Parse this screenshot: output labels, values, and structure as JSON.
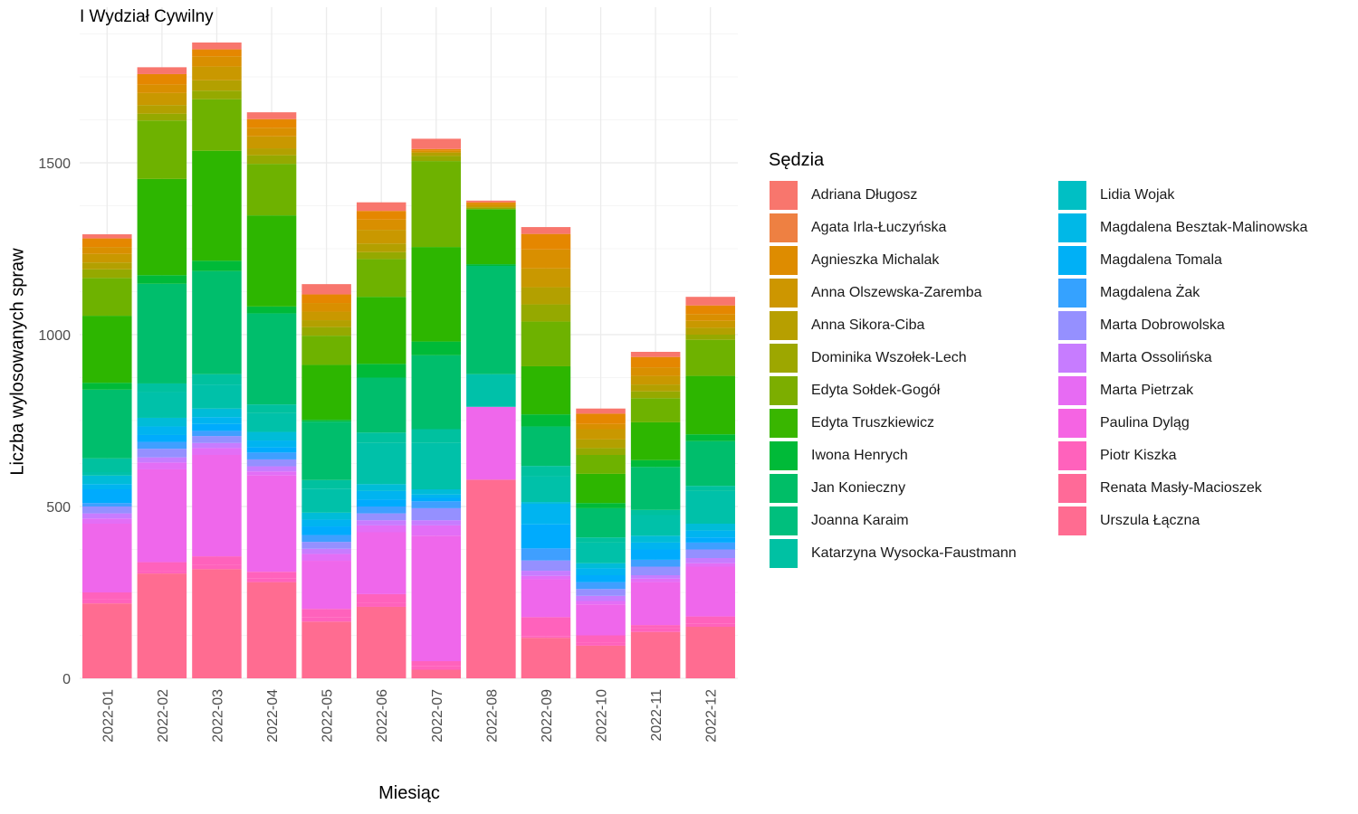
{
  "chart_data": {
    "type": "bar",
    "stacked": true,
    "title": "I Wydział Cywilny",
    "xlabel": "Miesiąc",
    "ylabel": "Liczba wylosowanych spraw",
    "ylim": [
      0,
      1880
    ],
    "yticks": [
      0,
      500,
      1000,
      1500
    ],
    "grid": true,
    "legend_position": "right",
    "legend_title": "Sędzia",
    "categories": [
      "2022-01",
      "2022-02",
      "2022-03",
      "2022-04",
      "2022-05",
      "2022-06",
      "2022-07",
      "2022-08",
      "2022-09",
      "2022-10",
      "2022-11",
      "2022-12"
    ],
    "series": [
      {
        "name": "Urszula Łączna",
        "color": "#FF6C91",
        "values": [
          218,
          305,
          318,
          280,
          165,
          208,
          25,
          578,
          118,
          95,
          135,
          150
        ]
      },
      {
        "name": "Renata Masły-Macioszek",
        "color": "#FF62BC",
        "values": [
          12,
          8,
          12,
          10,
          12,
          12,
          10,
          0,
          5,
          10,
          10,
          10
        ]
      },
      {
        "name": "Piotr Kiszka",
        "color": "#FF62BC",
        "values": [
          20,
          25,
          25,
          20,
          25,
          25,
          15,
          0,
          55,
          20,
          10,
          20
        ]
      },
      {
        "name": "Paulina Dyląg",
        "color": "#EF67EB",
        "values": [
          200,
          270,
          295,
          280,
          140,
          180,
          365,
          212,
          110,
          90,
          125,
          145
        ]
      },
      {
        "name": "Marta Pietrzak",
        "color": "#E36EF6",
        "values": [
          15,
          20,
          20,
          12,
          20,
          20,
          30,
          0,
          10,
          10,
          10,
          10
        ]
      },
      {
        "name": "Marta Ossolińska",
        "color": "#C77CFF",
        "values": [
          15,
          15,
          15,
          15,
          15,
          15,
          15,
          0,
          15,
          15,
          10,
          15
        ]
      },
      {
        "name": "Marta Dobrowolska",
        "color": "#9590FF",
        "values": [
          20,
          25,
          20,
          20,
          20,
          20,
          35,
          0,
          30,
          20,
          25,
          25
        ]
      },
      {
        "name": "Magdalena Żak",
        "color": "#3F9FFF",
        "values": [
          10,
          20,
          15,
          20,
          20,
          20,
          20,
          0,
          35,
          20,
          20,
          20
        ]
      },
      {
        "name": "Magdalena Tomala",
        "color": "#00ABFD",
        "values": [
          40,
          20,
          20,
          15,
          25,
          20,
          10,
          0,
          70,
          20,
          30,
          15
        ]
      },
      {
        "name": "Magdalena Besztak-Malinowska",
        "color": "#00B4F0",
        "values": [
          15,
          25,
          20,
          20,
          20,
          25,
          10,
          0,
          60,
          20,
          20,
          20
        ]
      },
      {
        "name": "Lidia Wojak",
        "color": "#00BCD8",
        "values": [
          25,
          25,
          25,
          25,
          20,
          20,
          15,
          0,
          5,
          15,
          20,
          20
        ]
      },
      {
        "name": "Katarzyna Wysocka-Faustmann",
        "color": "#00C1A9",
        "values": [
          10,
          75,
          70,
          55,
          70,
          120,
          135,
          95,
          75,
          60,
          60,
          95
        ]
      },
      {
        "name": "Joanna Karaim",
        "color": "#00C19F",
        "values": [
          40,
          25,
          30,
          25,
          25,
          30,
          40,
          0,
          30,
          15,
          15,
          15
        ]
      },
      {
        "name": "Jan Konieczny",
        "color": "#00BE6C",
        "values": [
          200,
          290,
          300,
          265,
          170,
          160,
          215,
          315,
          115,
          85,
          125,
          130
        ]
      },
      {
        "name": "Iwona Henrych",
        "color": "#00BA38",
        "values": [
          20,
          25,
          30,
          20,
          5,
          40,
          40,
          5,
          35,
          15,
          20,
          20
        ]
      },
      {
        "name": "Edyta Truszkiewicz",
        "color": "#2DB600",
        "values": [
          195,
          280,
          320,
          265,
          160,
          195,
          275,
          160,
          140,
          85,
          110,
          170
        ]
      },
      {
        "name": "Edyta Sołdek-Gogół",
        "color": "#6EB200",
        "values": [
          110,
          170,
          150,
          150,
          85,
          110,
          250,
          0,
          130,
          55,
          70,
          105
        ]
      },
      {
        "name": "Dominika Wszołek-Lech",
        "color": "#95A900",
        "values": [
          25,
          20,
          25,
          25,
          25,
          20,
          15,
          5,
          50,
          20,
          20,
          15
        ]
      },
      {
        "name": "Anna Sikora-Ciba",
        "color": "#B3A000",
        "values": [
          20,
          25,
          30,
          20,
          20,
          25,
          10,
          0,
          50,
          25,
          20,
          20
        ]
      },
      {
        "name": "Anna Olszewska-Zaremba",
        "color": "#C99800",
        "values": [
          25,
          35,
          40,
          35,
          25,
          40,
          0,
          5,
          55,
          30,
          25,
          20
        ]
      },
      {
        "name": "Agnieszka Michalak",
        "color": "#D98F00",
        "values": [
          20,
          25,
          30,
          25,
          25,
          30,
          5,
          5,
          55,
          15,
          25,
          20
        ]
      },
      {
        "name": "Agata Irla-Łuczyńska",
        "color": "#E58700",
        "values": [
          25,
          30,
          20,
          25,
          25,
          25,
          5,
          5,
          45,
          30,
          30,
          25
        ]
      },
      {
        "name": "Adriana Długosz",
        "color": "#F8766D",
        "values": [
          12,
          20,
          20,
          20,
          30,
          25,
          30,
          5,
          20,
          15,
          15,
          25
        ]
      }
    ],
    "legend": [
      {
        "name": "Adriana Długosz",
        "color": "#F8766D"
      },
      {
        "name": "Agata Irla-Łuczyńska",
        "color": "#EE8042"
      },
      {
        "name": "Agnieszka Michalak",
        "color": "#DE8C00"
      },
      {
        "name": "Anna Olszewska-Zaremba",
        "color": "#CD9600"
      },
      {
        "name": "Anna Sikora-Ciba",
        "color": "#B79F00"
      },
      {
        "name": "Dominika Wszołek-Lech",
        "color": "#9DA700"
      },
      {
        "name": "Edyta Sołdek-Gogół",
        "color": "#7CAE00"
      },
      {
        "name": "Edyta Truszkiewicz",
        "color": "#39B600"
      },
      {
        "name": "Iwona Henrych",
        "color": "#00BA38"
      },
      {
        "name": "Jan Konieczny",
        "color": "#00BE67"
      },
      {
        "name": "Joanna Karaim",
        "color": "#00BF7D"
      },
      {
        "name": "Katarzyna Wysocka-Faustmann",
        "color": "#00C1A3"
      },
      {
        "name": "Lidia Wojak",
        "color": "#00BFC4"
      },
      {
        "name": "Magdalena Besztak-Malinowska",
        "color": "#00B8E7"
      },
      {
        "name": "Magdalena Tomala",
        "color": "#00B0F6"
      },
      {
        "name": "Magdalena Żak",
        "color": "#35A2FF"
      },
      {
        "name": "Marta Dobrowolska",
        "color": "#9590FF"
      },
      {
        "name": "Marta Ossolińska",
        "color": "#C77CFF"
      },
      {
        "name": "Marta Pietrzak",
        "color": "#E76BF3"
      },
      {
        "name": "Paulina Dyląg",
        "color": "#F564E3"
      },
      {
        "name": "Piotr Kiszka",
        "color": "#FF62BC"
      },
      {
        "name": "Renata Masły-Macioszek",
        "color": "#FF6A98"
      },
      {
        "name": "Urszula Łączna",
        "color": "#FF6C91"
      }
    ]
  }
}
